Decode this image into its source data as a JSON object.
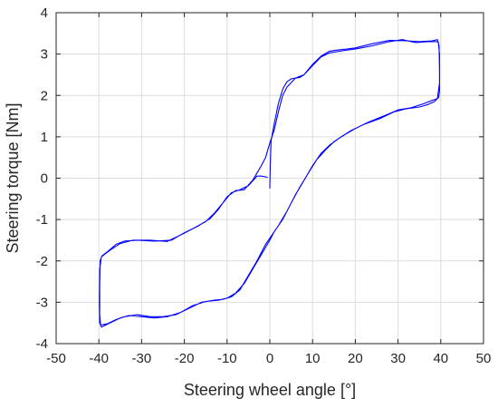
{
  "chart_data": {
    "type": "line",
    "title": "",
    "xlabel": "Steering wheel angle [°]",
    "ylabel": "Steering torque [Nm]",
    "xlim": [
      -50,
      50
    ],
    "ylim": [
      -4,
      4
    ],
    "xticks": [
      -50,
      -40,
      -30,
      -20,
      -10,
      0,
      10,
      20,
      30,
      40,
      50
    ],
    "yticks": [
      -4,
      -3,
      -2,
      -1,
      0,
      1,
      2,
      3,
      4
    ],
    "grid": true,
    "legend": "none",
    "colors": {
      "series": "#0000ff",
      "grid": "#dcdcdc",
      "axis": "#262626"
    },
    "series": [
      {
        "values_xy": [
          [
            0,
            -0.25
          ],
          [
            0.1,
            0.3
          ],
          [
            0.3,
            0.9
          ],
          [
            1,
            1.3
          ],
          [
            2,
            1.8
          ],
          [
            3,
            2.15
          ],
          [
            4,
            2.33
          ],
          [
            5,
            2.4
          ],
          [
            6,
            2.42
          ],
          [
            7,
            2.43
          ],
          [
            8,
            2.5
          ],
          [
            10,
            2.75
          ],
          [
            12,
            2.95
          ],
          [
            14,
            3.07
          ],
          [
            16,
            3.1
          ],
          [
            18,
            3.12
          ],
          [
            20,
            3.15
          ],
          [
            24,
            3.25
          ],
          [
            28,
            3.33
          ],
          [
            32,
            3.32
          ],
          [
            35,
            3.3
          ],
          [
            38,
            3.32
          ],
          [
            39.2,
            3.35
          ],
          [
            39.6,
            3.2
          ],
          [
            39.7,
            2.6
          ],
          [
            39.7,
            2.1
          ],
          [
            39.5,
            1.95
          ],
          [
            38.5,
            1.85
          ],
          [
            37,
            1.78
          ],
          [
            35,
            1.72
          ],
          [
            32,
            1.68
          ],
          [
            29,
            1.6
          ],
          [
            26,
            1.45
          ],
          [
            22,
            1.3
          ],
          [
            19,
            1.15
          ],
          [
            16,
            0.95
          ],
          [
            14,
            0.8
          ],
          [
            12,
            0.6
          ],
          [
            10,
            0.3
          ],
          [
            8,
            -0.05
          ],
          [
            6,
            -0.4
          ],
          [
            4,
            -0.8
          ],
          [
            2,
            -1.15
          ],
          [
            0,
            -1.45
          ],
          [
            -1,
            -1.6
          ],
          [
            -3,
            -2.0
          ],
          [
            -5,
            -2.35
          ],
          [
            -7,
            -2.7
          ],
          [
            -9,
            -2.87
          ],
          [
            -11,
            -2.93
          ],
          [
            -13,
            -2.95
          ],
          [
            -16,
            -3.0
          ],
          [
            -19,
            -3.15
          ],
          [
            -22,
            -3.3
          ],
          [
            -25,
            -3.35
          ],
          [
            -28,
            -3.35
          ],
          [
            -31,
            -3.3
          ],
          [
            -34,
            -3.35
          ],
          [
            -36,
            -3.42
          ],
          [
            -38,
            -3.52
          ],
          [
            -39.6,
            -3.55
          ],
          [
            -39.8,
            -3.3
          ],
          [
            -39.8,
            -2.6
          ],
          [
            -39.7,
            -2.0
          ],
          [
            -39.3,
            -1.88
          ],
          [
            -38,
            -1.78
          ],
          [
            -36,
            -1.6
          ],
          [
            -34,
            -1.52
          ],
          [
            -31,
            -1.5
          ],
          [
            -27,
            -1.52
          ],
          [
            -23,
            -1.5
          ],
          [
            -20,
            -1.32
          ],
          [
            -17,
            -1.17
          ],
          [
            -14,
            -0.98
          ],
          [
            -12,
            -0.75
          ],
          [
            -10,
            -0.45
          ],
          [
            -8,
            -0.3
          ],
          [
            -6,
            -0.28
          ],
          [
            -4,
            -0.05
          ],
          [
            -2,
            0.3
          ],
          [
            -1,
            0.5
          ],
          [
            0,
            0.85
          ],
          [
            1,
            1.15
          ],
          [
            2,
            1.6
          ],
          [
            3,
            2.0
          ],
          [
            4,
            2.2
          ],
          [
            6,
            2.42
          ],
          [
            8,
            2.5
          ],
          [
            10,
            2.72
          ],
          [
            12,
            2.93
          ],
          [
            14,
            3.03
          ],
          [
            17,
            3.08
          ],
          [
            20,
            3.12
          ],
          [
            24,
            3.2
          ],
          [
            28,
            3.3
          ],
          [
            31,
            3.35
          ],
          [
            34,
            3.28
          ],
          [
            37,
            3.3
          ],
          [
            39.4,
            3.3
          ],
          [
            39.7,
            3.0
          ],
          [
            39.7,
            2.3
          ],
          [
            39.2,
            1.92
          ],
          [
            38,
            1.88
          ],
          [
            36,
            1.8
          ],
          [
            33,
            1.7
          ],
          [
            30,
            1.65
          ],
          [
            27,
            1.52
          ],
          [
            23,
            1.35
          ],
          [
            20,
            1.2
          ],
          [
            17,
            1.02
          ],
          [
            15,
            0.88
          ],
          [
            13,
            0.68
          ],
          [
            11,
            0.45
          ],
          [
            9,
            0.12
          ],
          [
            7,
            -0.22
          ],
          [
            5,
            -0.6
          ],
          [
            3,
            -1.0
          ],
          [
            1,
            -1.3
          ],
          [
            0,
            -1.5
          ],
          [
            -2,
            -1.85
          ],
          [
            -4,
            -2.2
          ],
          [
            -6,
            -2.55
          ],
          [
            -8,
            -2.78
          ],
          [
            -10,
            -2.9
          ],
          [
            -12,
            -2.95
          ],
          [
            -15,
            -2.98
          ],
          [
            -18,
            -3.08
          ],
          [
            -21,
            -3.25
          ],
          [
            -24,
            -3.35
          ],
          [
            -27,
            -3.38
          ],
          [
            -30,
            -3.35
          ],
          [
            -33,
            -3.32
          ],
          [
            -35,
            -3.38
          ],
          [
            -37,
            -3.48
          ],
          [
            -39.4,
            -3.6
          ],
          [
            -39.8,
            -3.5
          ],
          [
            -39.9,
            -3.0
          ],
          [
            -39.8,
            -2.2
          ],
          [
            -39.4,
            -1.9
          ],
          [
            -37.5,
            -1.75
          ],
          [
            -35,
            -1.58
          ],
          [
            -32,
            -1.5
          ],
          [
            -28,
            -1.5
          ],
          [
            -24,
            -1.53
          ],
          [
            -21,
            -1.38
          ],
          [
            -18,
            -1.22
          ],
          [
            -15,
            -1.05
          ],
          [
            -13,
            -0.85
          ],
          [
            -11,
            -0.6
          ],
          [
            -9,
            -0.35
          ],
          [
            -7,
            -0.28
          ],
          [
            -5,
            -0.18
          ],
          [
            -3,
            0.05
          ],
          [
            -2,
            0.05
          ],
          [
            -1,
            0.03
          ],
          [
            -0.5,
            0.02
          ]
        ]
      }
    ]
  }
}
